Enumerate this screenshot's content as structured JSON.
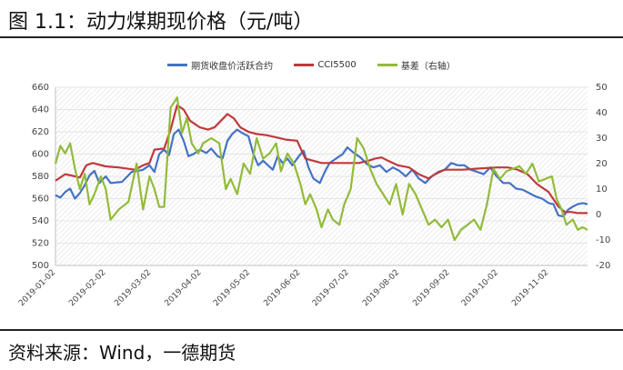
{
  "title": "图 1.1：动力煤期现价格（元/吨）",
  "source": "资料来源：Wind，一德期货",
  "chart_data": {
    "type": "line",
    "left_axis": {
      "min": 500,
      "max": 660,
      "step": 20,
      "ticks": [
        "500",
        "520",
        "540",
        "560",
        "580",
        "600",
        "620",
        "640",
        "660"
      ]
    },
    "right_axis": {
      "min": -20,
      "max": 50,
      "step": 10,
      "ticks": [
        "-20",
        "-10",
        "0",
        "10",
        "20",
        "30",
        "40",
        "50"
      ]
    },
    "x_ticks": [
      "2019-01-02",
      "2019-02-02",
      "2019-03-02",
      "2019-04-02",
      "2019-05-02",
      "2019-06-02",
      "2019-07-02",
      "2019-08-02",
      "2019-09-02",
      "2019-10-02",
      "2019-11-02"
    ],
    "x_range": [
      "2019-01-02",
      "2019-11-26"
    ],
    "grid": "hatched",
    "legend_position": "top",
    "series": [
      {
        "name": "期货收盘价活跃合约",
        "axis": "left",
        "color": "#4472c4",
        "points": [
          [
            "2019-01-02",
            563
          ],
          [
            "2019-01-05",
            561
          ],
          [
            "2019-01-08",
            566
          ],
          [
            "2019-01-11",
            569
          ],
          [
            "2019-01-14",
            560
          ],
          [
            "2019-01-17",
            565
          ],
          [
            "2019-01-20",
            572
          ],
          [
            "2019-01-23",
            581
          ],
          [
            "2019-01-26",
            585
          ],
          [
            "2019-01-29",
            574
          ],
          [
            "2019-02-02",
            580
          ],
          [
            "2019-02-05",
            574
          ],
          [
            "2019-02-12",
            575
          ],
          [
            "2019-02-18",
            584
          ],
          [
            "2019-02-22",
            585
          ],
          [
            "2019-02-25",
            586
          ],
          [
            "2019-03-01",
            590
          ],
          [
            "2019-03-04",
            584
          ],
          [
            "2019-03-07",
            600
          ],
          [
            "2019-03-10",
            604
          ],
          [
            "2019-03-13",
            599
          ],
          [
            "2019-03-16",
            618
          ],
          [
            "2019-03-19",
            622
          ],
          [
            "2019-03-22",
            612
          ],
          [
            "2019-03-25",
            598
          ],
          [
            "2019-03-28",
            600
          ],
          [
            "2019-04-01",
            604
          ],
          [
            "2019-04-05",
            601
          ],
          [
            "2019-04-08",
            605
          ],
          [
            "2019-04-12",
            598
          ],
          [
            "2019-04-15",
            596
          ],
          [
            "2019-04-18",
            612
          ],
          [
            "2019-04-21",
            618
          ],
          [
            "2019-04-24",
            622
          ],
          [
            "2019-04-27",
            619
          ],
          [
            "2019-05-01",
            616
          ],
          [
            "2019-05-04",
            600
          ],
          [
            "2019-05-07",
            590
          ],
          [
            "2019-05-10",
            594
          ],
          [
            "2019-05-13",
            590
          ],
          [
            "2019-05-16",
            586
          ],
          [
            "2019-05-19",
            598
          ],
          [
            "2019-05-22",
            592
          ],
          [
            "2019-05-25",
            596
          ],
          [
            "2019-05-28",
            590
          ],
          [
            "2019-06-01",
            598
          ],
          [
            "2019-06-04",
            603
          ],
          [
            "2019-06-07",
            588
          ],
          [
            "2019-06-10",
            578
          ],
          [
            "2019-06-14",
            574
          ],
          [
            "2019-06-17",
            584
          ],
          [
            "2019-06-20",
            592
          ],
          [
            "2019-06-24",
            596
          ],
          [
            "2019-06-28",
            600
          ],
          [
            "2019-07-01",
            606
          ],
          [
            "2019-07-05",
            601
          ],
          [
            "2019-07-09",
            597
          ],
          [
            "2019-07-13",
            591
          ],
          [
            "2019-07-17",
            588
          ],
          [
            "2019-07-21",
            590
          ],
          [
            "2019-07-25",
            584
          ],
          [
            "2019-07-29",
            588
          ],
          [
            "2019-08-02",
            585
          ],
          [
            "2019-08-06",
            580
          ],
          [
            "2019-08-10",
            586
          ],
          [
            "2019-08-14",
            578
          ],
          [
            "2019-08-18",
            574
          ],
          [
            "2019-08-22",
            580
          ],
          [
            "2019-08-26",
            584
          ],
          [
            "2019-08-30",
            586
          ],
          [
            "2019-09-03",
            592
          ],
          [
            "2019-09-07",
            590
          ],
          [
            "2019-09-11",
            590
          ],
          [
            "2019-09-15",
            586
          ],
          [
            "2019-09-19",
            584
          ],
          [
            "2019-09-23",
            582
          ],
          [
            "2019-09-27",
            588
          ],
          [
            "2019-10-01",
            580
          ],
          [
            "2019-10-05",
            574
          ],
          [
            "2019-10-09",
            574
          ],
          [
            "2019-10-13",
            569
          ],
          [
            "2019-10-17",
            568
          ],
          [
            "2019-10-21",
            565
          ],
          [
            "2019-10-25",
            562
          ],
          [
            "2019-10-29",
            560
          ],
          [
            "2019-11-02",
            556
          ],
          [
            "2019-11-05",
            555
          ],
          [
            "2019-11-08",
            545
          ],
          [
            "2019-11-11",
            544
          ],
          [
            "2019-11-14",
            550
          ],
          [
            "2019-11-17",
            553
          ],
          [
            "2019-11-20",
            555
          ],
          [
            "2019-11-23",
            556
          ],
          [
            "2019-11-26",
            555
          ]
        ]
      },
      {
        "name": "CCI5500",
        "axis": "left",
        "color": "#c0393b",
        "points": [
          [
            "2019-01-02",
            576
          ],
          [
            "2019-01-08",
            582
          ],
          [
            "2019-01-14",
            580
          ],
          [
            "2019-01-17",
            579
          ],
          [
            "2019-01-21",
            590
          ],
          [
            "2019-01-25",
            592
          ],
          [
            "2019-02-02",
            589
          ],
          [
            "2019-02-10",
            588
          ],
          [
            "2019-02-20",
            586
          ],
          [
            "2019-02-25",
            590
          ],
          [
            "2019-03-01",
            592
          ],
          [
            "2019-03-04",
            604
          ],
          [
            "2019-03-10",
            605
          ],
          [
            "2019-03-14",
            622
          ],
          [
            "2019-03-18",
            644
          ],
          [
            "2019-03-22",
            640
          ],
          [
            "2019-03-26",
            630
          ],
          [
            "2019-04-01",
            624
          ],
          [
            "2019-04-06",
            622
          ],
          [
            "2019-04-10",
            624
          ],
          [
            "2019-04-14",
            630
          ],
          [
            "2019-04-18",
            636
          ],
          [
            "2019-04-22",
            632
          ],
          [
            "2019-04-26",
            624
          ],
          [
            "2019-05-01",
            620
          ],
          [
            "2019-05-06",
            618
          ],
          [
            "2019-05-12",
            617
          ],
          [
            "2019-05-18",
            615
          ],
          [
            "2019-05-24",
            613
          ],
          [
            "2019-05-31",
            612
          ],
          [
            "2019-06-05",
            596
          ],
          [
            "2019-06-15",
            592
          ],
          [
            "2019-06-25",
            592
          ],
          [
            "2019-07-01",
            592
          ],
          [
            "2019-07-08",
            592
          ],
          [
            "2019-07-14",
            594
          ],
          [
            "2019-07-18",
            596
          ],
          [
            "2019-07-22",
            597
          ],
          [
            "2019-07-26",
            594
          ],
          [
            "2019-08-01",
            590
          ],
          [
            "2019-08-08",
            588
          ],
          [
            "2019-08-14",
            582
          ],
          [
            "2019-08-20",
            578
          ],
          [
            "2019-08-24",
            582
          ],
          [
            "2019-08-30",
            586
          ],
          [
            "2019-09-10",
            586
          ],
          [
            "2019-09-20",
            587
          ],
          [
            "2019-10-01",
            588
          ],
          [
            "2019-10-08",
            588
          ],
          [
            "2019-10-14",
            586
          ],
          [
            "2019-10-20",
            582
          ],
          [
            "2019-10-26",
            573
          ],
          [
            "2019-11-02",
            566
          ],
          [
            "2019-11-08",
            553
          ],
          [
            "2019-11-12",
            548
          ],
          [
            "2019-11-16",
            548
          ],
          [
            "2019-11-20",
            547
          ],
          [
            "2019-11-26",
            547
          ]
        ]
      },
      {
        "name": "基差（右轴）",
        "axis": "right",
        "color": "#92bb3a",
        "points": [
          [
            "2019-01-02",
            20
          ],
          [
            "2019-01-05",
            27
          ],
          [
            "2019-01-08",
            24
          ],
          [
            "2019-01-11",
            28
          ],
          [
            "2019-01-14",
            18
          ],
          [
            "2019-01-17",
            10
          ],
          [
            "2019-01-20",
            16
          ],
          [
            "2019-01-23",
            4
          ],
          [
            "2019-01-26",
            8
          ],
          [
            "2019-01-30",
            15
          ],
          [
            "2019-02-02",
            10
          ],
          [
            "2019-02-05",
            -2
          ],
          [
            "2019-02-10",
            2
          ],
          [
            "2019-02-16",
            5
          ],
          [
            "2019-02-21",
            20
          ],
          [
            "2019-02-25",
            2
          ],
          [
            "2019-03-01",
            15
          ],
          [
            "2019-03-04",
            10
          ],
          [
            "2019-03-07",
            3
          ],
          [
            "2019-03-10",
            3
          ],
          [
            "2019-03-14",
            42
          ],
          [
            "2019-03-18",
            46
          ],
          [
            "2019-03-21",
            32
          ],
          [
            "2019-03-24",
            38
          ],
          [
            "2019-03-27",
            28
          ],
          [
            "2019-03-31",
            24
          ],
          [
            "2019-04-03",
            28
          ],
          [
            "2019-04-08",
            30
          ],
          [
            "2019-04-13",
            28
          ],
          [
            "2019-04-17",
            10
          ],
          [
            "2019-04-20",
            14
          ],
          [
            "2019-04-24",
            8
          ],
          [
            "2019-04-28",
            20
          ],
          [
            "2019-05-02",
            16
          ],
          [
            "2019-05-06",
            30
          ],
          [
            "2019-05-10",
            22
          ],
          [
            "2019-05-14",
            24
          ],
          [
            "2019-05-18",
            28
          ],
          [
            "2019-05-21",
            17
          ],
          [
            "2019-05-25",
            24
          ],
          [
            "2019-05-29",
            20
          ],
          [
            "2019-06-02",
            12
          ],
          [
            "2019-06-05",
            4
          ],
          [
            "2019-06-08",
            8
          ],
          [
            "2019-06-12",
            2
          ],
          [
            "2019-06-15",
            -5
          ],
          [
            "2019-06-19",
            2
          ],
          [
            "2019-06-22",
            -2
          ],
          [
            "2019-06-26",
            -4
          ],
          [
            "2019-06-29",
            4
          ],
          [
            "2019-07-03",
            10
          ],
          [
            "2019-07-07",
            30
          ],
          [
            "2019-07-11",
            26
          ],
          [
            "2019-07-15",
            18
          ],
          [
            "2019-07-19",
            12
          ],
          [
            "2019-07-23",
            8
          ],
          [
            "2019-07-27",
            4
          ],
          [
            "2019-07-31",
            12
          ],
          [
            "2019-08-04",
            0
          ],
          [
            "2019-08-08",
            12
          ],
          [
            "2019-08-12",
            8
          ],
          [
            "2019-08-16",
            2
          ],
          [
            "2019-08-20",
            -4
          ],
          [
            "2019-08-24",
            -2
          ],
          [
            "2019-08-28",
            -5
          ],
          [
            "2019-09-01",
            -2
          ],
          [
            "2019-09-05",
            -10
          ],
          [
            "2019-09-09",
            -6
          ],
          [
            "2019-09-13",
            -4
          ],
          [
            "2019-09-17",
            -2
          ],
          [
            "2019-09-21",
            -6
          ],
          [
            "2019-09-25",
            4
          ],
          [
            "2019-09-29",
            18
          ],
          [
            "2019-10-03",
            14
          ],
          [
            "2019-10-07",
            17
          ],
          [
            "2019-10-11",
            18
          ],
          [
            "2019-10-15",
            19
          ],
          [
            "2019-10-19",
            16
          ],
          [
            "2019-10-23",
            20
          ],
          [
            "2019-10-27",
            13
          ],
          [
            "2019-10-31",
            14
          ],
          [
            "2019-11-04",
            15
          ],
          [
            "2019-11-07",
            6
          ],
          [
            "2019-11-10",
            2
          ],
          [
            "2019-11-13",
            -4
          ],
          [
            "2019-11-17",
            -2
          ],
          [
            "2019-11-20",
            -6
          ],
          [
            "2019-11-23",
            -5
          ],
          [
            "2019-11-26",
            -6
          ]
        ]
      }
    ]
  }
}
